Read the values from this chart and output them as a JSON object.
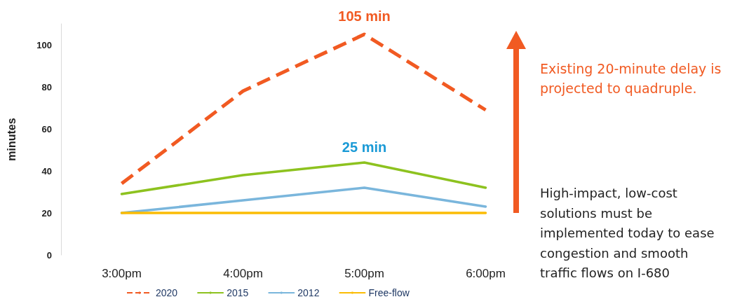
{
  "chart_data": {
    "type": "line",
    "ylabel": "minutes",
    "categories": [
      "3:00pm",
      "4:00pm",
      "5:00pm",
      "6:00pm"
    ],
    "series": [
      {
        "name": "2020",
        "color": "#f15a22",
        "values": [
          34,
          78,
          105,
          69
        ],
        "line_style": "dashed"
      },
      {
        "name": "2015",
        "color": "#8dc21f",
        "values": [
          29,
          38,
          44,
          32
        ]
      },
      {
        "name": "2012",
        "color": "#7ab6dc",
        "values": [
          20,
          26,
          32,
          23
        ]
      },
      {
        "name": "Free-flow",
        "color": "#fbbc05",
        "values": [
          20,
          20,
          20,
          20
        ]
      }
    ],
    "ylim": [
      0,
      110
    ],
    "yticks": [
      0,
      20,
      40,
      60,
      80,
      100
    ],
    "grid": false,
    "legend": "bottom",
    "marker": "none",
    "line_style": "solid",
    "annotations": [
      {
        "text": "105 min",
        "x": "5:00pm",
        "y": 105
      },
      {
        "text": "25 min",
        "x": "5:00pm",
        "y": 44
      },
      "Existing 20-minute delay is projected to quadruple.",
      "High-impact, low-cost solutions must be implemented today to ease congestion and smooth traffic flows on I-680"
    ]
  }
}
